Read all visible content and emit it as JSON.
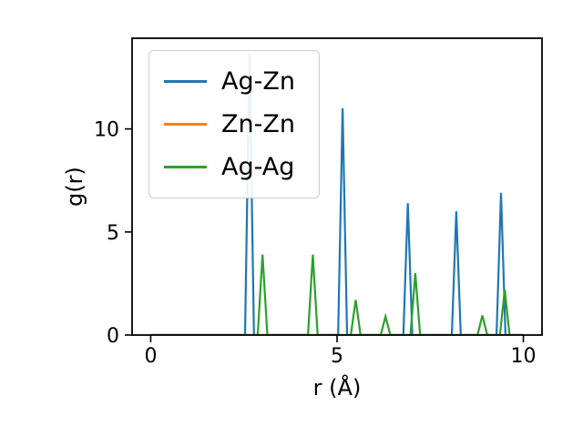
{
  "figure": {
    "background": "#ffffff"
  },
  "chart_data": {
    "type": "line",
    "title": "",
    "xlabel": "r (Å)",
    "ylabel": "g(r)",
    "xlim": [
      -0.5,
      10.5
    ],
    "ylim": [
      0,
      14.4
    ],
    "xtick_labels": [
      "0",
      "5",
      "10"
    ],
    "xtick_values": [
      0,
      5,
      10
    ],
    "ytick_labels": [
      "0",
      "5",
      "10"
    ],
    "ytick_values": [
      0,
      5,
      10
    ],
    "grid": false,
    "legend_position": "upper left",
    "line_shape": "triangular-peaks-on-zero-baseline",
    "series": [
      {
        "name": "Ag-Zn",
        "color": "#1f77b4",
        "baseline": 0,
        "x_range": [
          0,
          10
        ],
        "peak_half_width": 0.12,
        "peaks": [
          {
            "r": 2.65,
            "g": 13.7
          },
          {
            "r": 5.15,
            "g": 11.0
          },
          {
            "r": 6.9,
            "g": 6.4
          },
          {
            "r": 8.2,
            "g": 6.0
          },
          {
            "r": 9.4,
            "g": 6.9
          }
        ]
      },
      {
        "name": "Zn-Zn",
        "color": "#ff7f0e",
        "baseline": 0,
        "x_range": [
          0,
          10
        ],
        "peak_half_width": 0.12,
        "peaks": []
      },
      {
        "name": "Ag-Ag",
        "color": "#2ca02c",
        "baseline": 0,
        "x_range": [
          0,
          10
        ],
        "peak_half_width": 0.13,
        "peaks": [
          {
            "r": 3.0,
            "g": 3.9
          },
          {
            "r": 4.35,
            "g": 3.9
          },
          {
            "r": 5.5,
            "g": 1.7
          },
          {
            "r": 6.3,
            "g": 0.9
          },
          {
            "r": 7.1,
            "g": 3.0
          },
          {
            "r": 8.9,
            "g": 0.95
          },
          {
            "r": 9.5,
            "g": 2.2
          }
        ]
      }
    ]
  }
}
